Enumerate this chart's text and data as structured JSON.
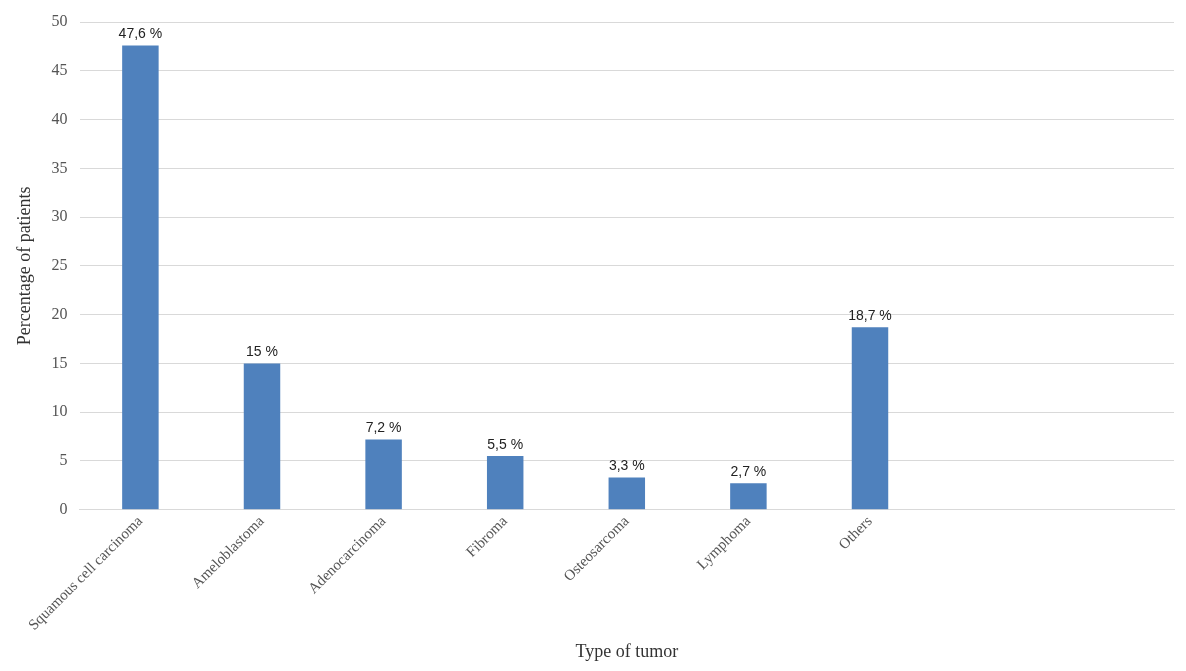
{
  "chart_data": {
    "type": "bar",
    "xlabel": "Type of tumor",
    "ylabel": "Percentage of patients",
    "categories": [
      "Squamous cell carcinoma",
      "Ameloblastoma",
      "Adenocarcinoma",
      "Fibroma",
      "Osteosarcoma",
      "Lymphoma",
      "Others",
      null,
      null
    ],
    "values": [
      47.6,
      15,
      7.2,
      5.5,
      3.3,
      2.7,
      18.7,
      null,
      null
    ],
    "value_labels": [
      "47,6 %",
      "15 %",
      "7,2 %",
      "5,5 %",
      "3,3 %",
      "2,7 %",
      "18,7 %",
      null,
      null
    ],
    "color": "#4f81bd",
    "ylim": [
      0,
      50
    ],
    "yticks": [
      0,
      5,
      10,
      15,
      20,
      25,
      30,
      35,
      40,
      45,
      50
    ],
    "grid": "y",
    "legend": false
  }
}
